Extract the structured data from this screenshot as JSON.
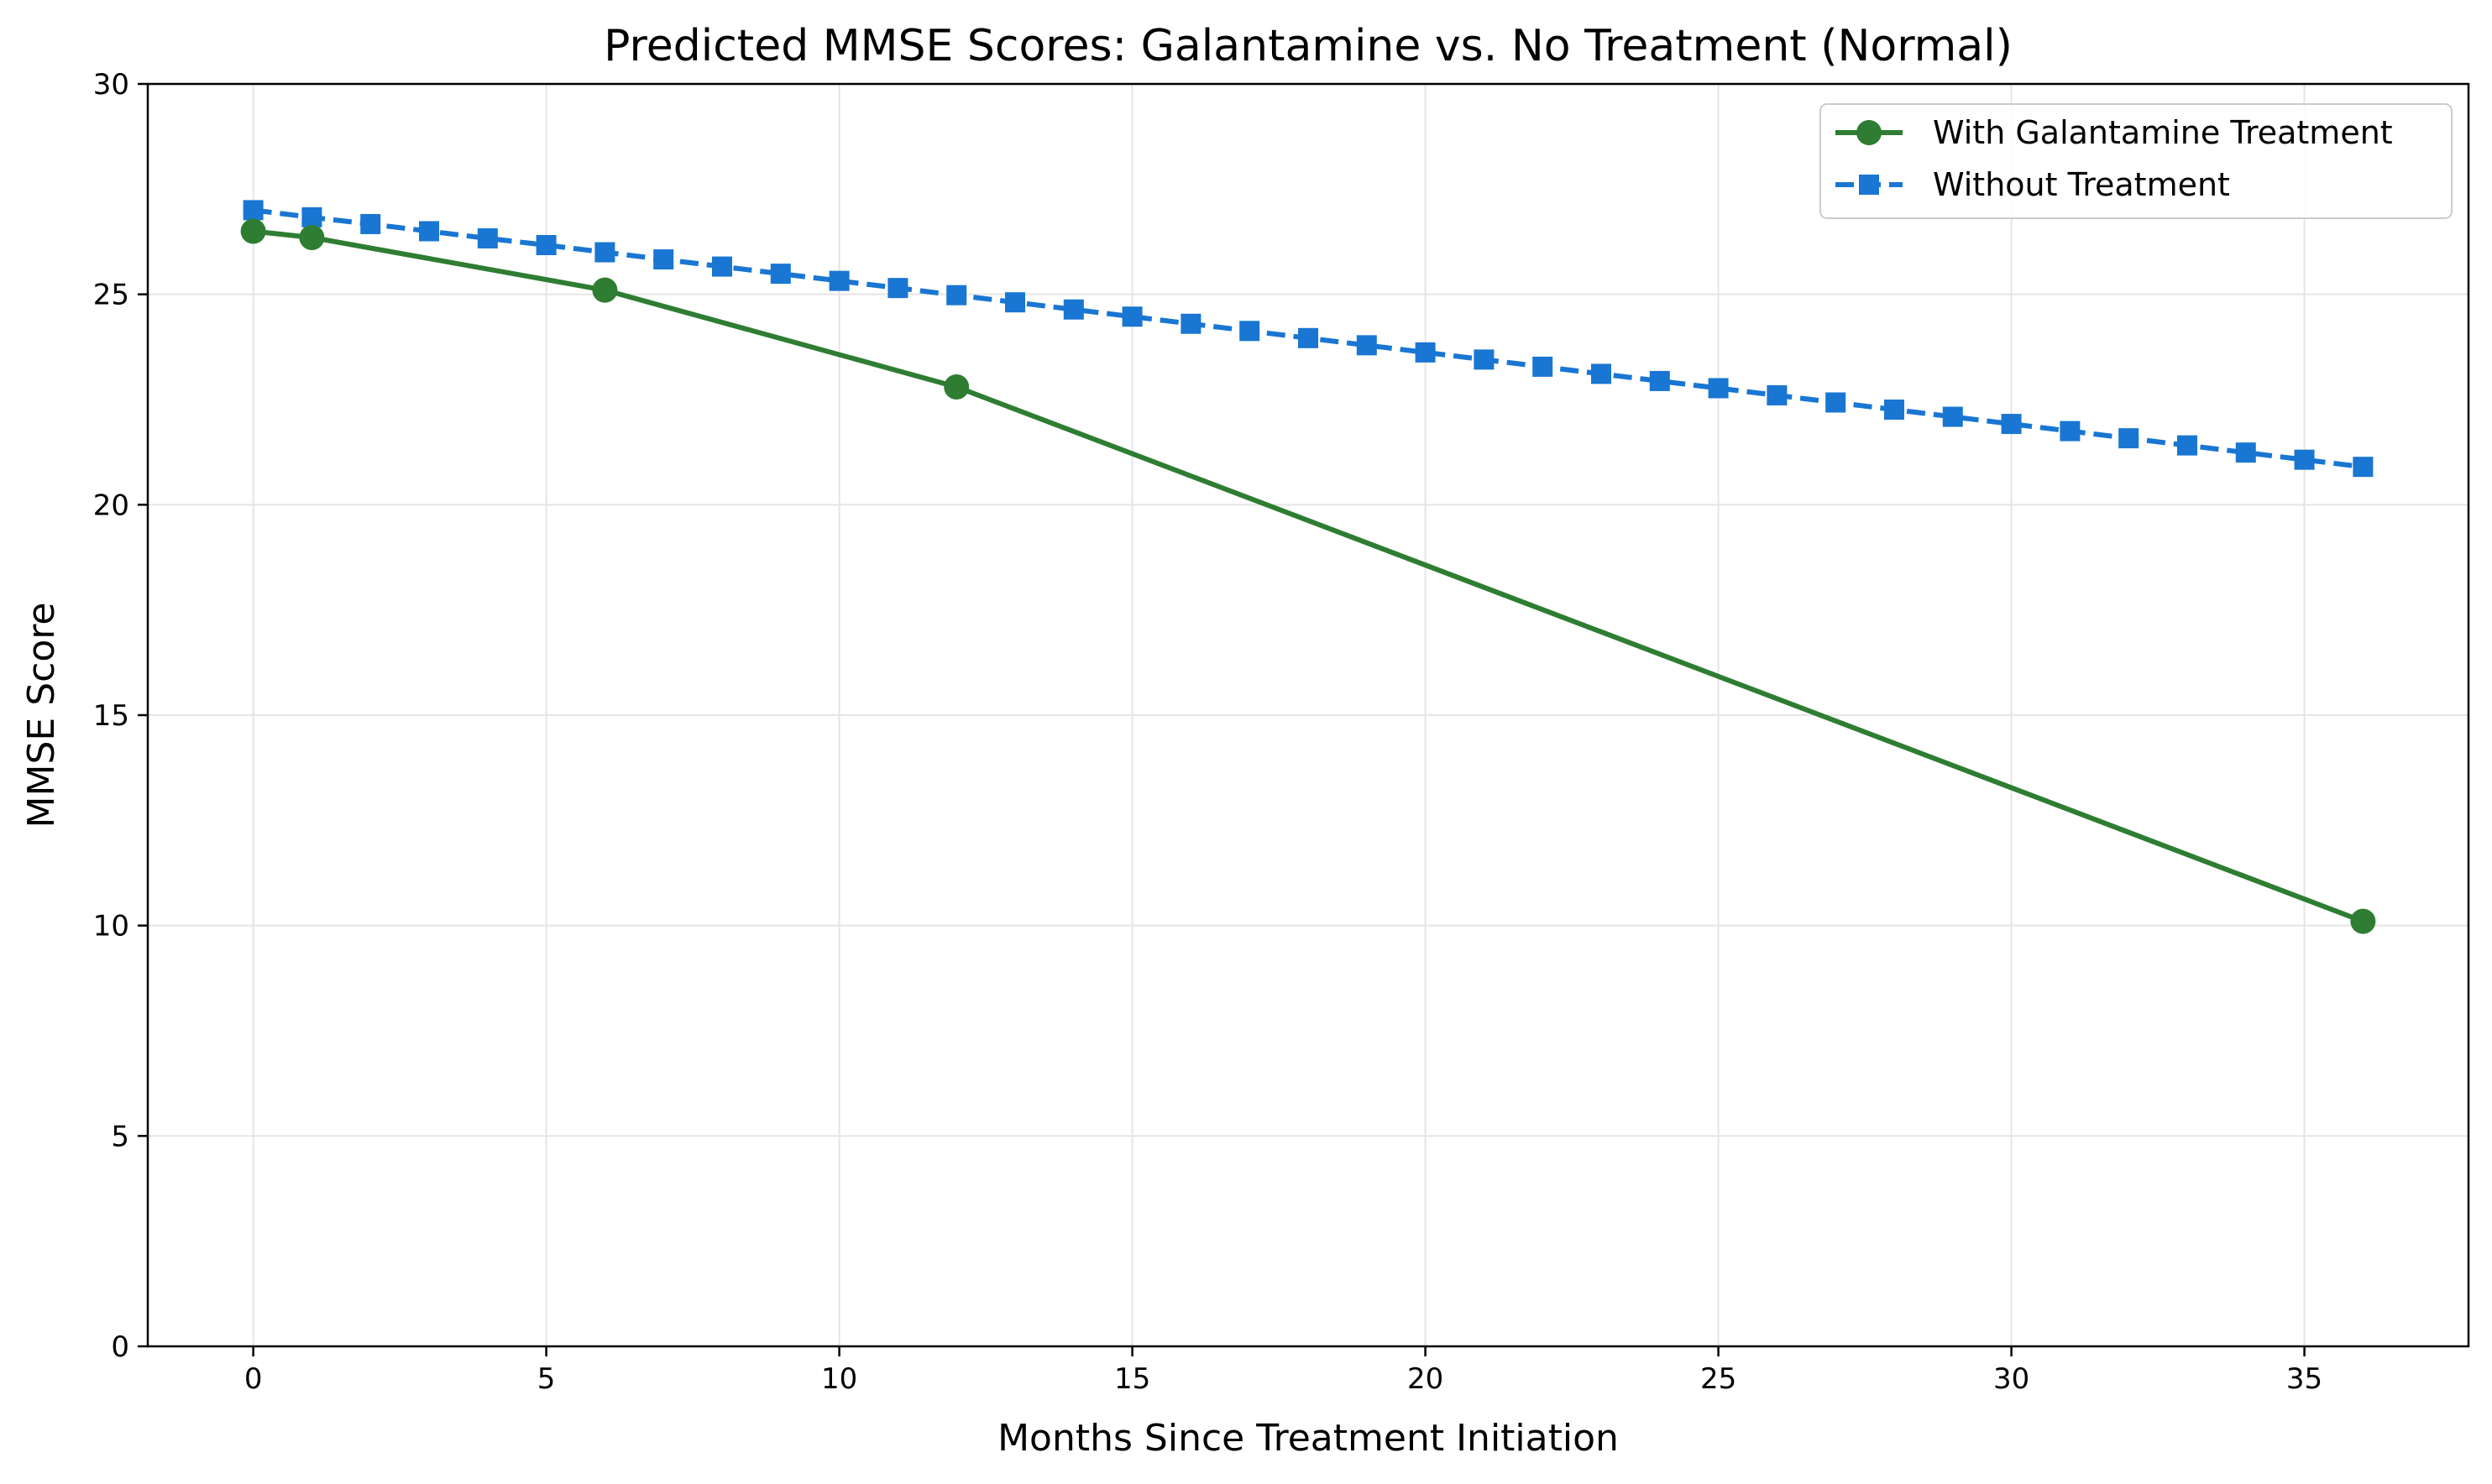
{
  "chart_data": {
    "type": "line",
    "title": "Predicted MMSE Scores: Galantamine vs. No Treatment (Normal)",
    "xlabel": "Months Since Treatment Initiation",
    "ylabel": "MMSE Score",
    "xlim": [
      -1.8,
      37.8
    ],
    "ylim": [
      0,
      30
    ],
    "xticks": [
      0,
      5,
      10,
      15,
      20,
      25,
      30,
      35
    ],
    "yticks": [
      0,
      5,
      10,
      15,
      20,
      25,
      30
    ],
    "grid": true,
    "legend_position": "top-right",
    "series": [
      {
        "name": "With Galantamine Treatment",
        "color": "#2e7d32",
        "line_style": "solid",
        "marker": "circle",
        "x": [
          0,
          1,
          6,
          12,
          36
        ],
        "y": [
          26.5,
          26.35,
          25.1,
          22.8,
          10.1
        ]
      },
      {
        "name": "Without Treatment",
        "color": "#1976d2",
        "line_style": "dashed",
        "marker": "square",
        "x": [
          0,
          1,
          2,
          3,
          4,
          5,
          6,
          7,
          8,
          9,
          10,
          11,
          12,
          13,
          14,
          15,
          16,
          17,
          18,
          19,
          20,
          21,
          22,
          23,
          24,
          25,
          26,
          27,
          28,
          29,
          30,
          31,
          32,
          33,
          34,
          35,
          36
        ],
        "y": [
          27.0,
          26.83,
          26.67,
          26.5,
          26.33,
          26.17,
          26.0,
          25.83,
          25.66,
          25.49,
          25.32,
          25.15,
          24.98,
          24.81,
          24.64,
          24.47,
          24.3,
          24.13,
          23.96,
          23.79,
          23.62,
          23.45,
          23.28,
          23.11,
          22.94,
          22.77,
          22.6,
          22.43,
          22.26,
          22.09,
          21.92,
          21.75,
          21.58,
          21.41,
          21.24,
          21.07,
          20.9
        ]
      }
    ]
  }
}
